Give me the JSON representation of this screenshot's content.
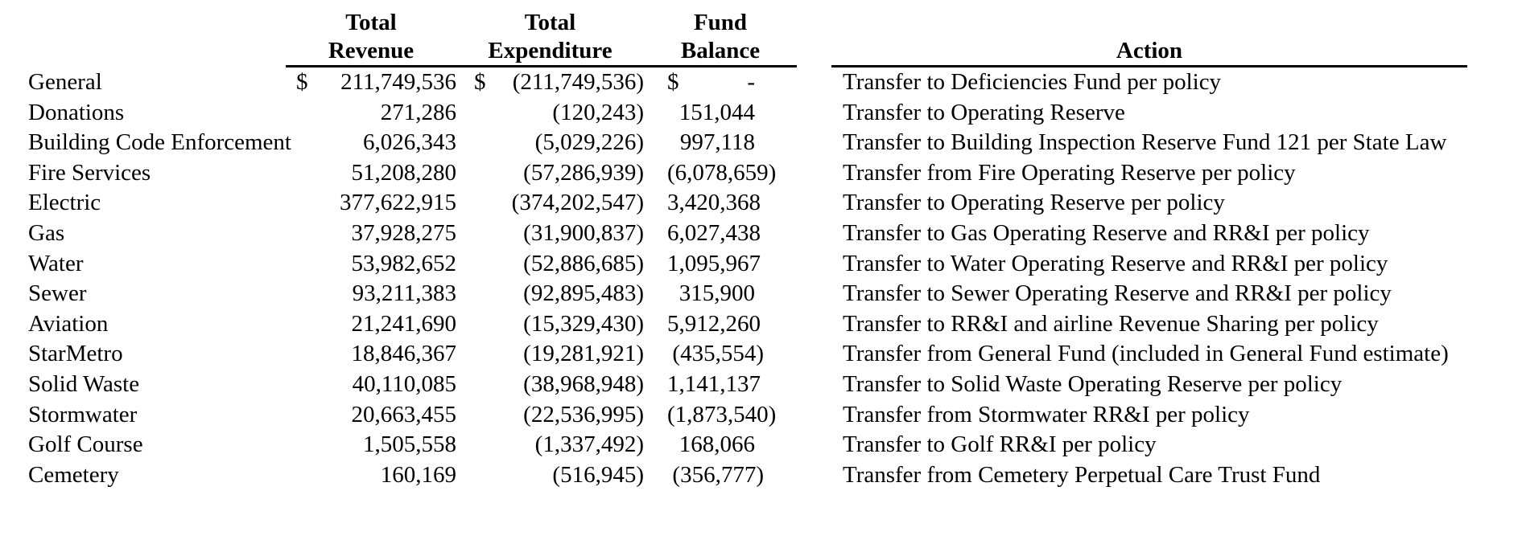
{
  "colors": {
    "background": "#ffffff",
    "text": "#000000",
    "rule": "#000000"
  },
  "table": {
    "currency_symbol": "$",
    "headers": {
      "revenue": [
        "Total",
        "Revenue"
      ],
      "expenditure": [
        "Total",
        "Expenditure"
      ],
      "balance": [
        "Fund",
        "Balance"
      ],
      "action": "Action"
    },
    "rows": [
      {
        "fund": "General",
        "dollar": true,
        "revenue": "211,749,536",
        "expenditure": "(211,749,536)",
        "balance": "-",
        "action": "Transfer to Deficiencies Fund per policy"
      },
      {
        "fund": "Donations",
        "dollar": false,
        "revenue": "271,286",
        "expenditure": "(120,243)",
        "balance": "151,044",
        "action": "Transfer to Operating Reserve"
      },
      {
        "fund": "Building Code Enforcement",
        "dollar": false,
        "revenue": "6,026,343",
        "expenditure": "(5,029,226)",
        "balance": "997,118",
        "action": "Transfer to Building Inspection Reserve Fund 121 per State Law"
      },
      {
        "fund": "Fire Services",
        "dollar": false,
        "revenue": "51,208,280",
        "expenditure": "(57,286,939)",
        "balance": "(6,078,659)",
        "action": "Transfer from Fire Operating Reserve per policy"
      },
      {
        "fund": "Electric",
        "dollar": false,
        "revenue": "377,622,915",
        "expenditure": "(374,202,547)",
        "balance": "3,420,368",
        "action": "Transfer to Operating Reserve per policy"
      },
      {
        "fund": "Gas",
        "dollar": false,
        "revenue": "37,928,275",
        "expenditure": "(31,900,837)",
        "balance": "6,027,438",
        "action": "Transfer to Gas Operating Reserve and RR&I per policy"
      },
      {
        "fund": "Water",
        "dollar": false,
        "revenue": "53,982,652",
        "expenditure": "(52,886,685)",
        "balance": "1,095,967",
        "action": "Transfer to Water Operating Reserve and RR&I per policy"
      },
      {
        "fund": "Sewer",
        "dollar": false,
        "revenue": "93,211,383",
        "expenditure": "(92,895,483)",
        "balance": "315,900",
        "action": "Transfer to Sewer Operating Reserve and RR&I per policy"
      },
      {
        "fund": "Aviation",
        "dollar": false,
        "revenue": "21,241,690",
        "expenditure": "(15,329,430)",
        "balance": "5,912,260",
        "action": "Transfer to RR&I and airline Revenue Sharing per policy"
      },
      {
        "fund": "StarMetro",
        "dollar": false,
        "revenue": "18,846,367",
        "expenditure": "(19,281,921)",
        "balance": "(435,554)",
        "action": "Transfer from General Fund (included in General Fund estimate)"
      },
      {
        "fund": "Solid Waste",
        "dollar": false,
        "revenue": "40,110,085",
        "expenditure": "(38,968,948)",
        "balance": "1,141,137",
        "action": "Transfer to Solid Waste Operating Reserve per policy"
      },
      {
        "fund": "Stormwater",
        "dollar": false,
        "revenue": "20,663,455",
        "expenditure": "(22,536,995)",
        "balance": "(1,873,540)",
        "action": "Transfer from Stormwater RR&I per policy"
      },
      {
        "fund": "Golf Course",
        "dollar": false,
        "revenue": "1,505,558",
        "expenditure": "(1,337,492)",
        "balance": "168,066",
        "action": "Transfer to Golf RR&I per policy"
      },
      {
        "fund": "Cemetery",
        "dollar": false,
        "revenue": "160,169",
        "expenditure": "(516,945)",
        "balance": "(356,777)",
        "action": "Transfer from Cemetery Perpetual Care Trust Fund"
      }
    ]
  }
}
